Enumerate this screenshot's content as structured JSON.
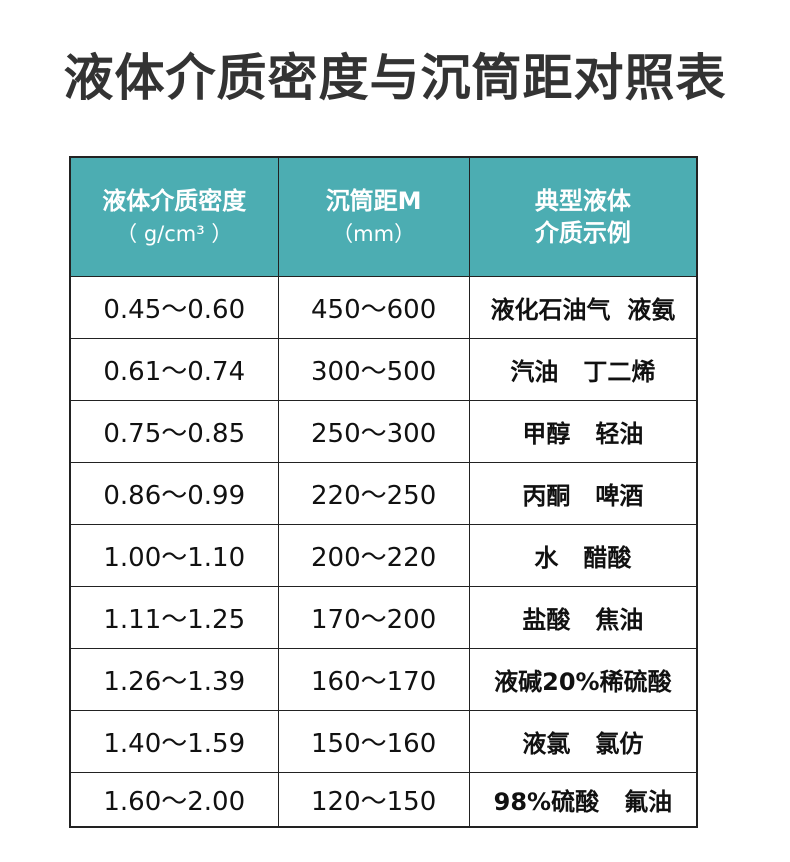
{
  "title": "液体介质密度与沉筒距对照表",
  "header_color": "#4cadb2",
  "headers": [
    {
      "line1": "液体介质密度",
      "line2": "（ g/cm³ ）"
    },
    {
      "line1": "沉筒距M",
      "line2": "（mm）"
    },
    {
      "line1": "典型液体",
      "line2": "介质示例"
    }
  ],
  "rows": [
    {
      "density": "0.45～0.60",
      "distance": "450～600",
      "example": "液化石油气  液氨"
    },
    {
      "density": "0.61～0.74",
      "distance": "300～500",
      "example": "汽油   丁二烯"
    },
    {
      "density": "0.75～0.85",
      "distance": "250～300",
      "example": "甲醇   轻油"
    },
    {
      "density": "0.86～0.99",
      "distance": "220～250",
      "example": "丙酮   啤酒"
    },
    {
      "density": "1.00～1.10",
      "distance": "200～220",
      "example": "水   醋酸"
    },
    {
      "density": "1.11～1.25",
      "distance": "170～200",
      "example": "盐酸   焦油"
    },
    {
      "density": "1.26～1.39",
      "distance": "160～170",
      "example": "液碱20%稀硫酸"
    },
    {
      "density": "1.40～1.59",
      "distance": "150～160",
      "example": "液氯   氯仿"
    },
    {
      "density": "1.60～2.00",
      "distance": "120～150",
      "example": "98%硫酸   氟油"
    }
  ]
}
